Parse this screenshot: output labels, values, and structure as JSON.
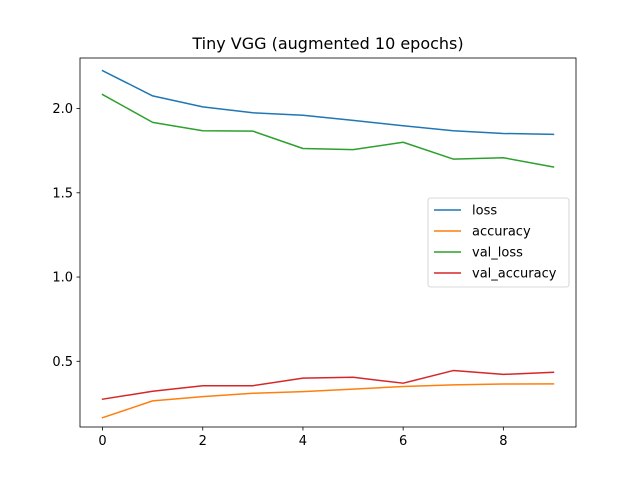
{
  "chart_data": {
    "type": "line",
    "title": "Tiny VGG (augmented 10 epochs)",
    "xlabel": "",
    "ylabel": "",
    "x": [
      0,
      1,
      2,
      3,
      4,
      5,
      6,
      7,
      8,
      9
    ],
    "xlim": [
      -0.45,
      9.45
    ],
    "ylim": [
      0.11,
      2.3
    ],
    "xticks": [
      0,
      2,
      4,
      6,
      8
    ],
    "yticks": [
      0.5,
      1.0,
      1.5,
      2.0
    ],
    "ytick_labels": [
      "0.5",
      "1.0",
      "1.5",
      "2.0"
    ],
    "grid": false,
    "legend_position": "center-right",
    "series": [
      {
        "name": "loss",
        "color": "#1f77b4",
        "values": [
          2.225,
          2.075,
          2.01,
          1.975,
          1.96,
          1.93,
          1.898,
          1.868,
          1.852,
          1.847
        ]
      },
      {
        "name": "accuracy",
        "color": "#ff7f0e",
        "values": [
          0.165,
          0.265,
          0.29,
          0.31,
          0.32,
          0.335,
          0.35,
          0.36,
          0.365,
          0.366
        ]
      },
      {
        "name": "val_loss",
        "color": "#2ca02c",
        "values": [
          2.083,
          1.918,
          1.868,
          1.866,
          1.763,
          1.756,
          1.8,
          1.7,
          1.708,
          1.653
        ]
      },
      {
        "name": "val_accuracy",
        "color": "#d62728",
        "values": [
          0.275,
          0.322,
          0.355,
          0.355,
          0.4,
          0.405,
          0.37,
          0.445,
          0.422,
          0.435
        ]
      }
    ]
  }
}
